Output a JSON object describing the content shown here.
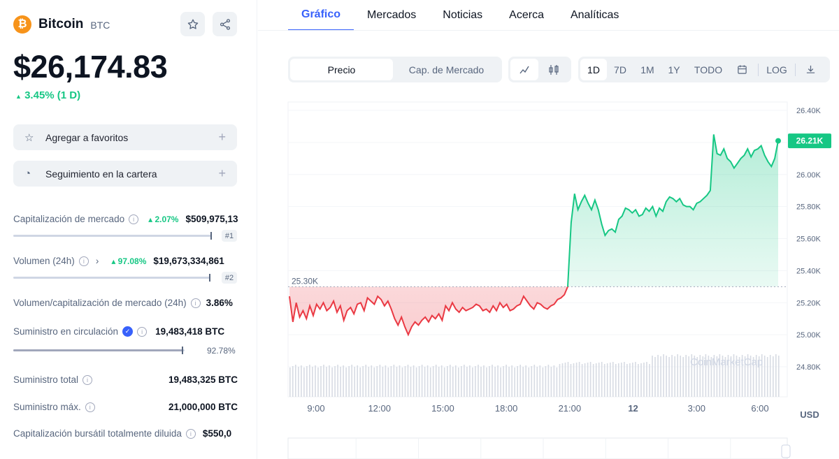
{
  "coin": {
    "logo_glyph": "₿",
    "name": "Bitcoin",
    "symbol": "BTC",
    "price": "$26,174.83",
    "change": "3.45% (1 D)",
    "accent": "#f7931a"
  },
  "header_icons": [
    "star-icon",
    "share-icon"
  ],
  "actions": {
    "favorites": "Agregar a favoritos",
    "portfolio": "Seguimiento en la cartera"
  },
  "stats": {
    "market_cap": {
      "label": "Capitalización de mercado",
      "change": "2.07%",
      "value": "$509,975,13",
      "rank": "#1",
      "fill": 0.9
    },
    "volume": {
      "label": "Volumen (24h)",
      "change": "97.08%",
      "value": "$19,673,334,861",
      "rank": "#2",
      "fill": 0.9
    },
    "vol_mcap": {
      "label": "Volumen/capitalización de mercado (24h)",
      "value": "3.86%"
    },
    "circulating": {
      "label": "Suministro en circulación",
      "value": "19,483,418 BTC",
      "percent": "92.78%",
      "fill": 0.9278
    },
    "total": {
      "label": "Suministro total",
      "value": "19,483,325 BTC"
    },
    "max": {
      "label": "Suministro máx.",
      "value": "21,000,000 BTC"
    },
    "fdv": {
      "label": "Capitalización bursátil totalmente diluida",
      "value": "$550,0"
    }
  },
  "tabs": [
    "Gráfico",
    "Mercados",
    "Noticias",
    "Acerca",
    "Analíticas"
  ],
  "toolbar": {
    "metric": [
      "Precio",
      "Cap. de Mercado"
    ],
    "ranges": [
      "1D",
      "7D",
      "1M",
      "1Y",
      "TODO"
    ],
    "log": "LOG"
  },
  "colors": {
    "up": "#16c784",
    "down": "#ea3943",
    "brand": "#3861fb"
  },
  "chart_data": {
    "type": "line",
    "currency_label": "USD",
    "y_ticks": [
      "26.40K",
      "26.20K",
      "26.00K",
      "25.80K",
      "25.60K",
      "25.40K",
      "25.20K",
      "25.00K",
      "24.80K"
    ],
    "y_tick_values": [
      26400,
      26200,
      26000,
      25800,
      25600,
      25400,
      25200,
      25000,
      24800
    ],
    "x_ticks": [
      "9:00",
      "12:00",
      "15:00",
      "18:00",
      "21:00",
      "12",
      "3:00",
      "6:00"
    ],
    "baseline_label": "25.30K",
    "baseline": 25300,
    "current_label": "26.21K",
    "watermark": "CoinMarketCap",
    "series": [
      {
        "values": [
          25240,
          25080,
          25200,
          25110,
          25150,
          25100,
          25180,
          25120,
          25190,
          25160,
          25200,
          25150,
          25170,
          25210,
          25140,
          25180,
          25090,
          25150,
          25170,
          25130,
          25190,
          25200,
          25150,
          25230,
          25210,
          25190,
          25240,
          25220,
          25180,
          25210,
          25160,
          25100,
          25060,
          25110,
          25050,
          25000,
          25050,
          25080,
          25060,
          25090,
          25110,
          25080,
          25120,
          25100,
          25130,
          25090,
          25180,
          25150,
          25200,
          25160,
          25140,
          25170,
          25150,
          25160,
          25170,
          25190,
          25180,
          25150,
          25160,
          25140,
          25180,
          25150,
          25200,
          25170,
          25190,
          25150,
          25160,
          25180,
          25190,
          25240,
          25210,
          25180,
          25160,
          25200,
          25190,
          25170,
          25160,
          25180,
          25190,
          25220,
          25230,
          25250,
          25300,
          25700,
          25880,
          25780,
          25830,
          25870,
          25820,
          25780,
          25840,
          25780,
          25690,
          25620,
          25650,
          25660,
          25640,
          25720,
          25740,
          25790,
          25780,
          25760,
          25780,
          25740,
          25750,
          25790,
          25770,
          25800,
          25740,
          25790,
          25770,
          25830,
          25860,
          25850,
          25830,
          25850,
          25810,
          25800,
          25800,
          25780,
          25820,
          25830,
          25850,
          25870,
          25900,
          26250,
          26130,
          26120,
          26160,
          26100,
          26080,
          26040,
          26070,
          26100,
          26120,
          26160,
          26110,
          26150,
          26160,
          26180,
          26120,
          26080,
          26050,
          26100,
          26210
        ]
      }
    ],
    "volume_note": "volume bars below price (unlabeled)"
  }
}
